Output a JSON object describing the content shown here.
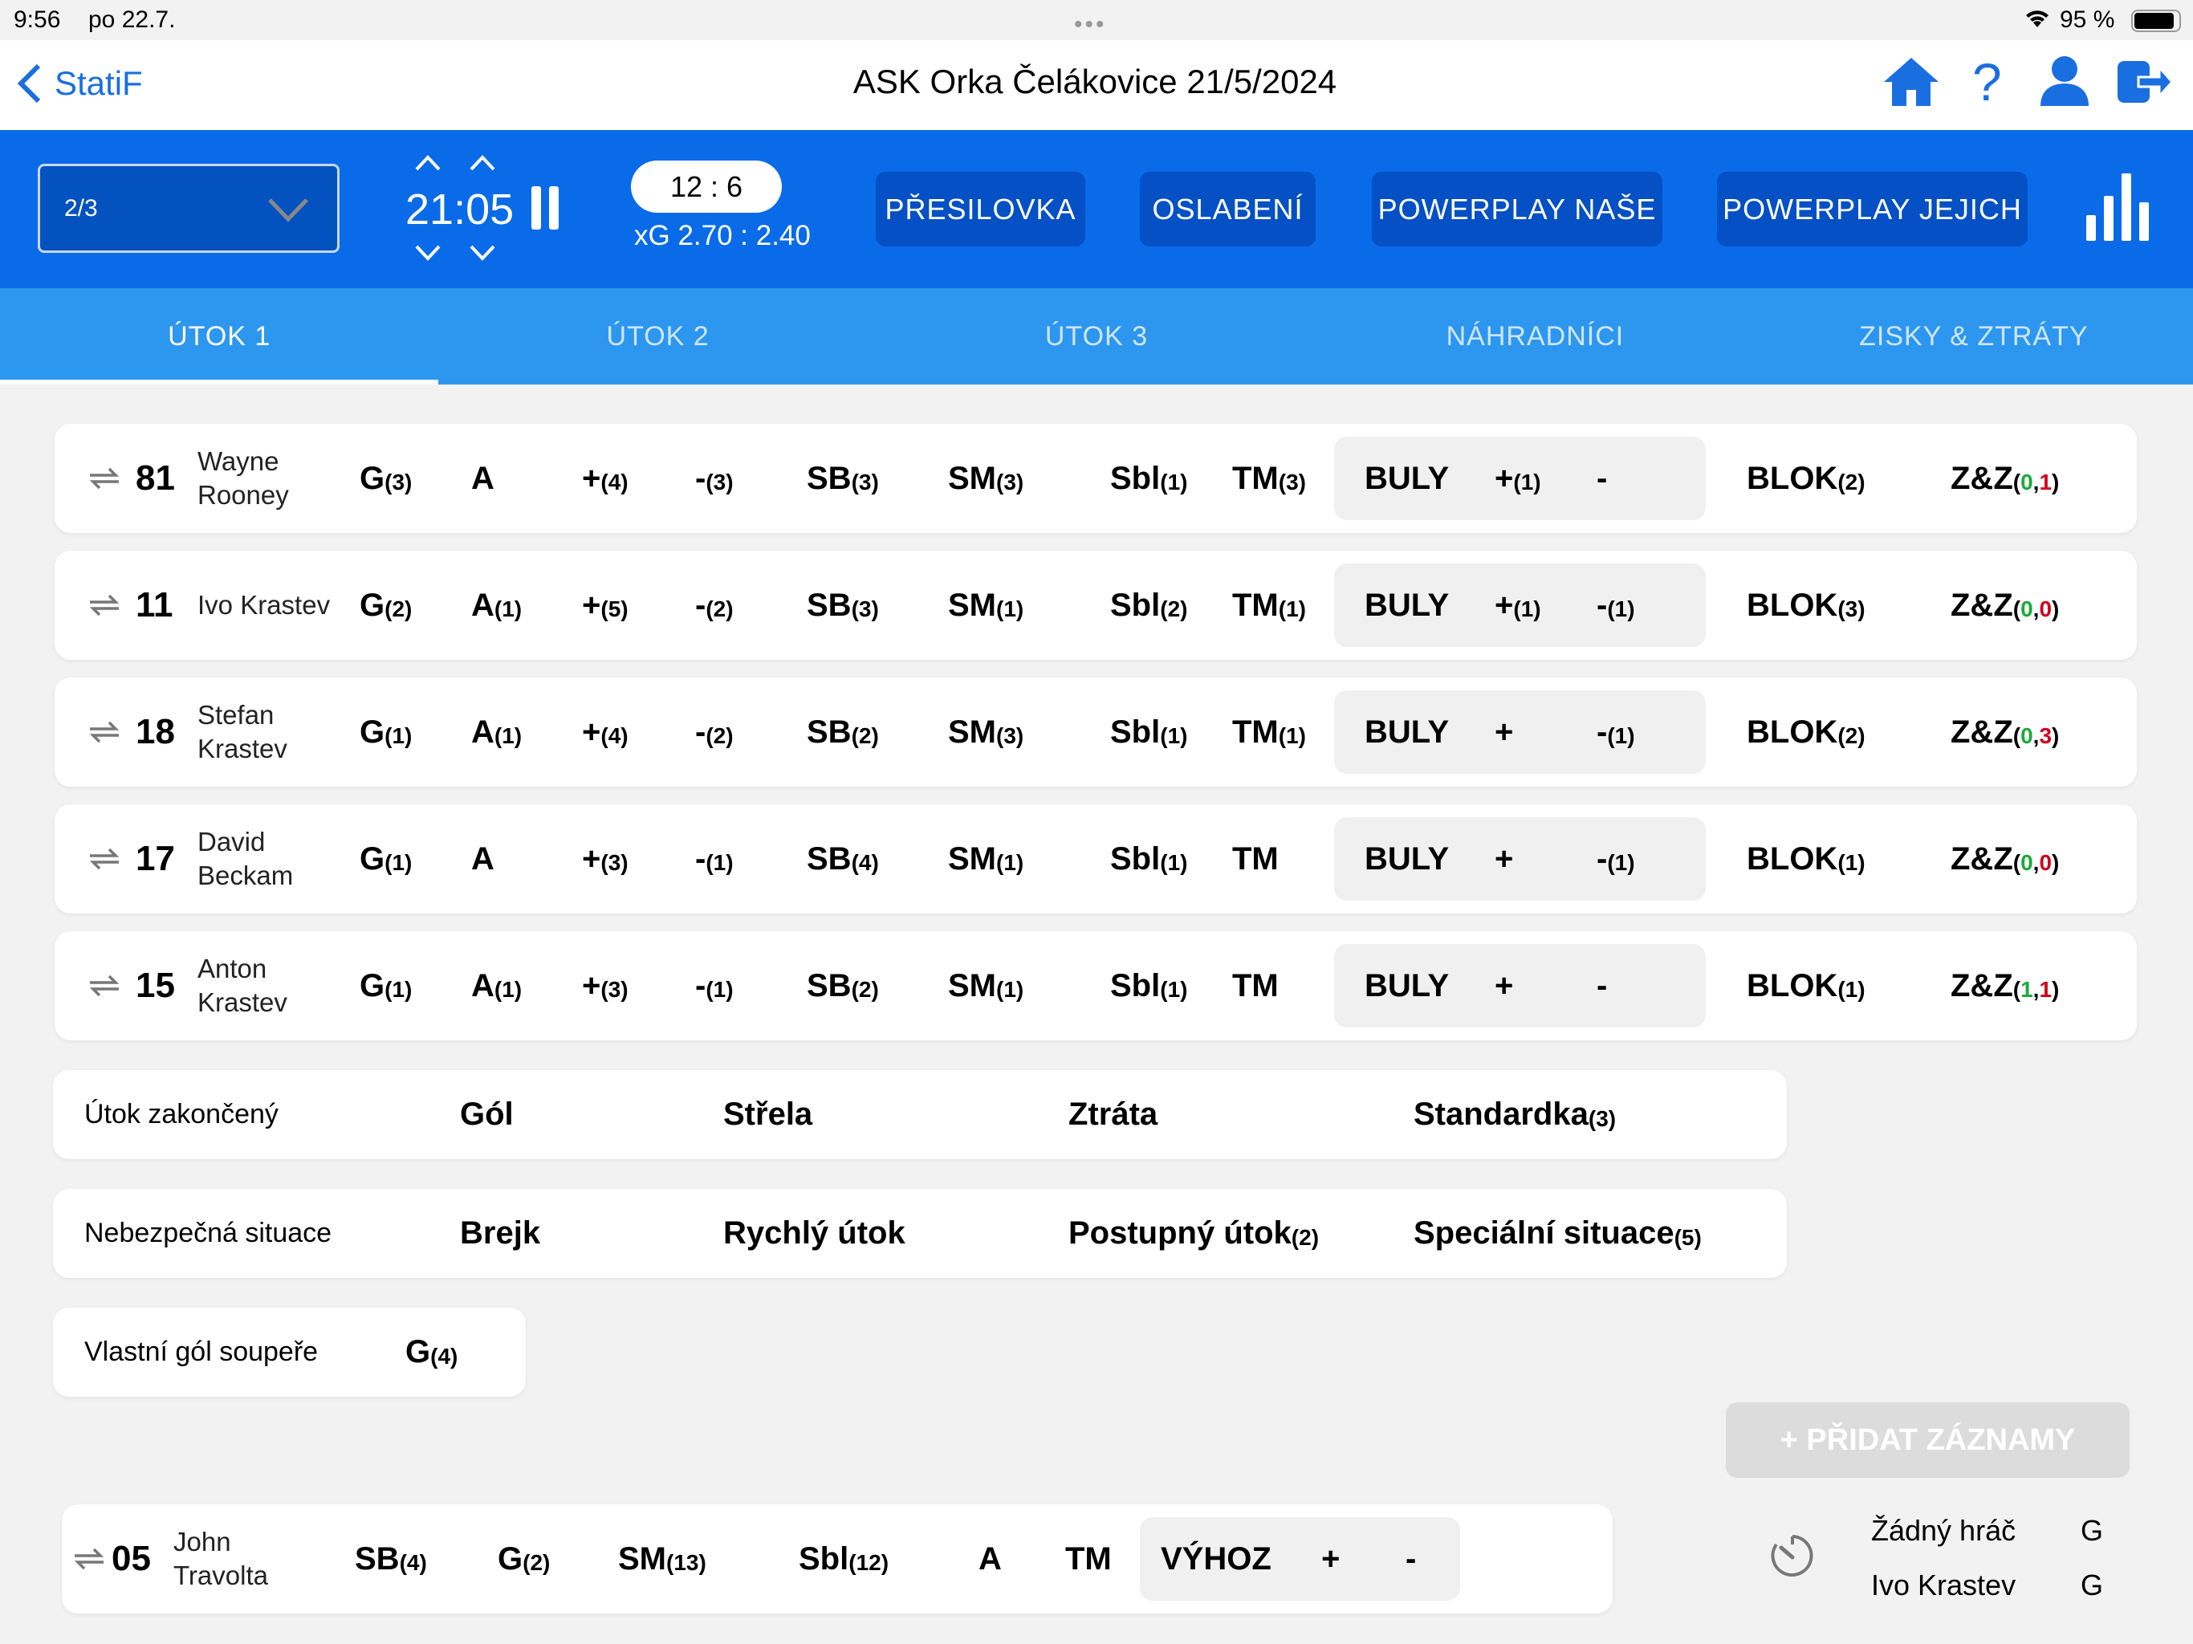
{
  "status_bar": {
    "time": "9:56",
    "date": "po 22.7.",
    "battery": "95 %"
  },
  "nav": {
    "back_label": "StatiF",
    "title": "ASK Orka Čelákovice 21/5/2024",
    "icons": [
      "home-icon",
      "help-icon",
      "user-icon",
      "logout-icon"
    ]
  },
  "toolbar": {
    "period": "2/3",
    "clock": "21:05",
    "score": "12 : 6",
    "xg": "xG 2.70 : 2.40",
    "buttons": [
      "PŘESILOVKA",
      "OSLABENÍ",
      "POWERPLAY NAŠE",
      "POWERPLAY JEJICH"
    ]
  },
  "tabs": [
    {
      "label": "ÚTOK 1",
      "active": true
    },
    {
      "label": "ÚTOK 2"
    },
    {
      "label": "ÚTOK 3"
    },
    {
      "label": "NÁHRADNÍCI"
    },
    {
      "label": "ZISKY & ZTRÁTY"
    }
  ],
  "players": [
    {
      "number": "81",
      "name": [
        "Wayne",
        "Rooney"
      ],
      "stats": [
        [
          "G",
          "3"
        ],
        [
          "A",
          ""
        ],
        [
          "+",
          "4"
        ],
        [
          "-",
          "3"
        ],
        [
          "SB",
          "3"
        ],
        [
          "SM",
          "3"
        ],
        [
          "Sbl",
          "1"
        ],
        [
          "TM",
          "3"
        ]
      ],
      "buly": [
        "BULY",
        [
          "+",
          "1"
        ],
        [
          "-",
          ""
        ]
      ],
      "blok": "2",
      "zz": [
        "0",
        "1"
      ]
    },
    {
      "number": "11",
      "name": [
        "Ivo Krastev"
      ],
      "stats": [
        [
          "G",
          "2"
        ],
        [
          "A",
          "1"
        ],
        [
          "+",
          "5"
        ],
        [
          "-",
          "2"
        ],
        [
          "SB",
          "3"
        ],
        [
          "SM",
          "1"
        ],
        [
          "Sbl",
          "2"
        ],
        [
          "TM",
          "1"
        ]
      ],
      "buly": [
        "BULY",
        [
          "+",
          "1"
        ],
        [
          "-",
          "1"
        ]
      ],
      "blok": "3",
      "zz": [
        "0",
        "0"
      ]
    },
    {
      "number": "18",
      "name": [
        "Stefan",
        "Krastev"
      ],
      "stats": [
        [
          "G",
          "1"
        ],
        [
          "A",
          "1"
        ],
        [
          "+",
          "4"
        ],
        [
          "-",
          "2"
        ],
        [
          "SB",
          "2"
        ],
        [
          "SM",
          "3"
        ],
        [
          "Sbl",
          "1"
        ],
        [
          "TM",
          "1"
        ]
      ],
      "buly": [
        "BULY",
        [
          "+",
          ""
        ],
        [
          "-",
          "1"
        ]
      ],
      "blok": "2",
      "zz": [
        "0",
        "3"
      ]
    },
    {
      "number": "17",
      "name": [
        "David",
        "Beckam"
      ],
      "stats": [
        [
          "G",
          "1"
        ],
        [
          "A",
          ""
        ],
        [
          "+",
          "3"
        ],
        [
          "-",
          "1"
        ],
        [
          "SB",
          "4"
        ],
        [
          "SM",
          "1"
        ],
        [
          "Sbl",
          "1"
        ],
        [
          "TM",
          ""
        ]
      ],
      "buly": [
        "BULY",
        [
          "+",
          ""
        ],
        [
          "-",
          "1"
        ]
      ],
      "blok": "1",
      "zz": [
        "0",
        "0"
      ]
    },
    {
      "number": "15",
      "name": [
        "Anton",
        "Krastev"
      ],
      "stats": [
        [
          "G",
          "1"
        ],
        [
          "A",
          "1"
        ],
        [
          "+",
          "3"
        ],
        [
          "-",
          "1"
        ],
        [
          "SB",
          "2"
        ],
        [
          "SM",
          "1"
        ],
        [
          "Sbl",
          "1"
        ],
        [
          "TM",
          ""
        ]
      ],
      "buly": [
        "BULY",
        [
          "+",
          ""
        ],
        [
          "-",
          ""
        ]
      ],
      "blok": "1",
      "zz": [
        "1",
        "1"
      ]
    }
  ],
  "blok_label": "BLOK",
  "zz_label": "Z&Z",
  "panels": [
    {
      "label": "Útok zakončený",
      "items": [
        [
          "Gól",
          ""
        ],
        [
          "Střela",
          ""
        ],
        [
          "Ztráta",
          ""
        ],
        [
          "Standardka",
          "3"
        ]
      ]
    },
    {
      "label": "Nebezpečná situace",
      "items": [
        [
          "Brejk",
          ""
        ],
        [
          "Rychlý útok",
          ""
        ],
        [
          "Postupný útok",
          "2"
        ],
        [
          "Speciální situace",
          "5"
        ]
      ]
    },
    {
      "label": "Vlastní gól soupeře",
      "items": [
        [
          "G",
          "4"
        ]
      ]
    }
  ],
  "add_button": "+ PŘIDAT ZÁZNAMY",
  "goalie": {
    "number": "05",
    "name": [
      "John",
      "Travolta"
    ],
    "stats": [
      [
        "SB",
        "4"
      ],
      [
        "G",
        "2"
      ],
      [
        "SM",
        "13"
      ],
      [
        "Sbl",
        "12"
      ],
      [
        "A",
        ""
      ],
      [
        "TM",
        ""
      ]
    ],
    "vyhoz": [
      "VÝHOZ",
      [
        "+",
        ""
      ],
      [
        "-",
        ""
      ]
    ]
  },
  "goalie_log": [
    {
      "name": "Žádný hráč",
      "code": "G"
    },
    {
      "name": "Ivo Krastev",
      "code": "G"
    }
  ],
  "colors": {
    "toolbar": "#0a6be8",
    "tabs": "#2d97f0",
    "button": "#0450c4",
    "accent": "#1a6fe0",
    "zz_gain": "#1aaa3c",
    "zz_loss": "#d0021b"
  }
}
